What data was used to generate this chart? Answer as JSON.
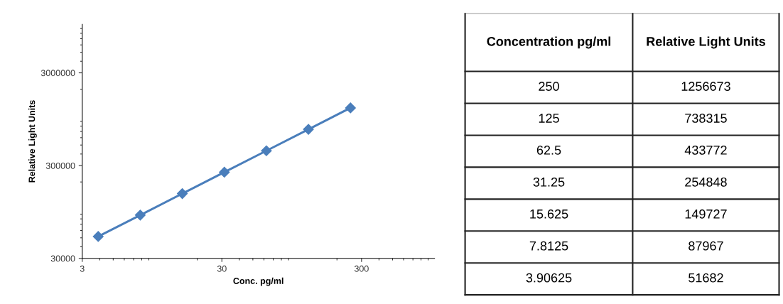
{
  "chart_data": [
    {
      "type": "line",
      "xlabel": "Conc. pg/ml",
      "ylabel": "Relative Light Units",
      "x": [
        250,
        125,
        62.5,
        31.25,
        15.625,
        7.8125,
        3.90625
      ],
      "series": [
        {
          "color": "#4a7ebb",
          "values": [
            1256673,
            738315,
            433772,
            254848,
            149727,
            87967,
            51682
          ]
        }
      ],
      "log": "xy",
      "xlim": [
        3,
        1000
      ],
      "ylim": [
        30000,
        10000000
      ],
      "xticks": [
        3,
        30,
        300
      ],
      "yticks": [
        30000,
        300000,
        3000000
      ],
      "marker": "diamond",
      "line_style": "solid",
      "grid": false,
      "legend": false
    },
    {
      "type": "other",
      "annotations": [
        "Concentration pg/ml",
        "Relative Light Units",
        "250",
        "1256673",
        "125",
        "738315",
        "62.5",
        "433772",
        "31.25",
        "254848",
        "15.625",
        "149727",
        "7.8125",
        "87967",
        "3.90625",
        "51682"
      ]
    }
  ]
}
